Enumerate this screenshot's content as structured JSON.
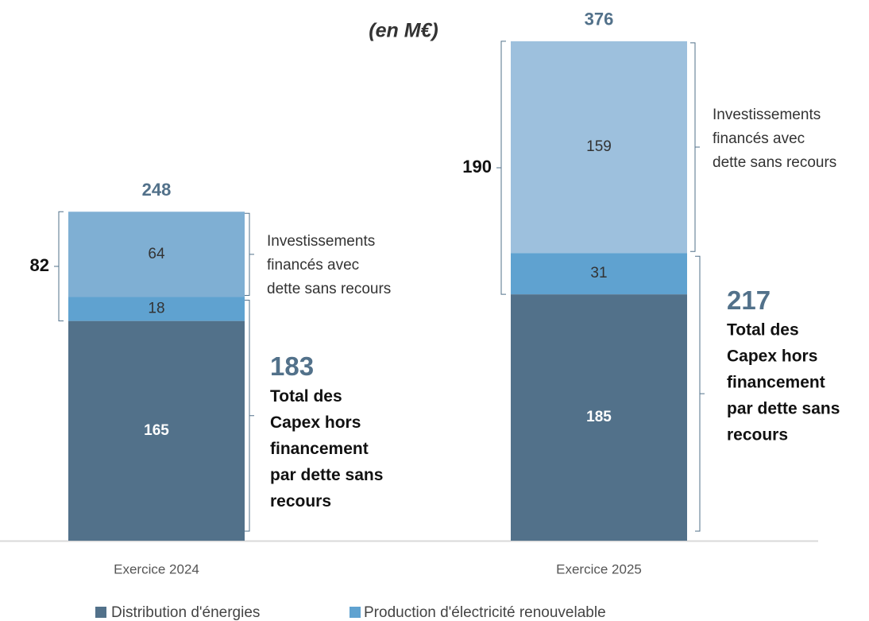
{
  "chart_data": {
    "type": "stacked_bar",
    "subtitle": "(en M€)",
    "categories": [
      "Exercice 2024",
      "Exercice 2025"
    ],
    "series": [
      {
        "name": "Distribution d'énergies",
        "color": "#52718a",
        "values": [
          165,
          185
        ]
      },
      {
        "name": "Production d'électricité renouvelable",
        "color": "#5fa2d0",
        "values": [
          18,
          31
        ]
      },
      {
        "colors": [
          "#7fafd3",
          "#9dc0dd"
        ],
        "values": [
          64,
          159
        ]
      }
    ],
    "totals": [
      248,
      376
    ],
    "financed_totals": [
      82,
      190
    ],
    "financed_label": [
      "Investissements",
      "financés avec",
      "dette sans recours"
    ],
    "capex_totals": [
      183,
      217
    ],
    "capex_label": [
      "Total des",
      "Capex hors",
      "financement",
      "par dette sans",
      "recours"
    ]
  }
}
